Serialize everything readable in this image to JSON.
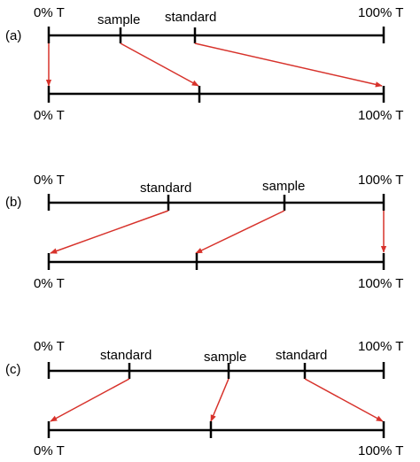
{
  "colors": {
    "axis": "#000000",
    "arrow": "#d7322b"
  },
  "labels": {
    "zero": "0% T",
    "hundred": "100% T",
    "sample": "sample",
    "standard": "standard"
  },
  "panels": [
    {
      "id": "a",
      "label": "(a)",
      "top_labels": [
        "0% T",
        "sample",
        "standard",
        "100% T"
      ],
      "bottom_labels": [
        "0% T",
        "100% T"
      ]
    },
    {
      "id": "b",
      "label": "(b)",
      "top_labels": [
        "0% T",
        "standard",
        "sample",
        "100% T"
      ],
      "bottom_labels": [
        "0% T",
        "100% T"
      ]
    },
    {
      "id": "c",
      "label": "(c)",
      "top_labels": [
        "0% T",
        "standard",
        "sample",
        "standard",
        "100% T"
      ],
      "bottom_labels": [
        "0% T",
        "100% T"
      ]
    }
  ]
}
